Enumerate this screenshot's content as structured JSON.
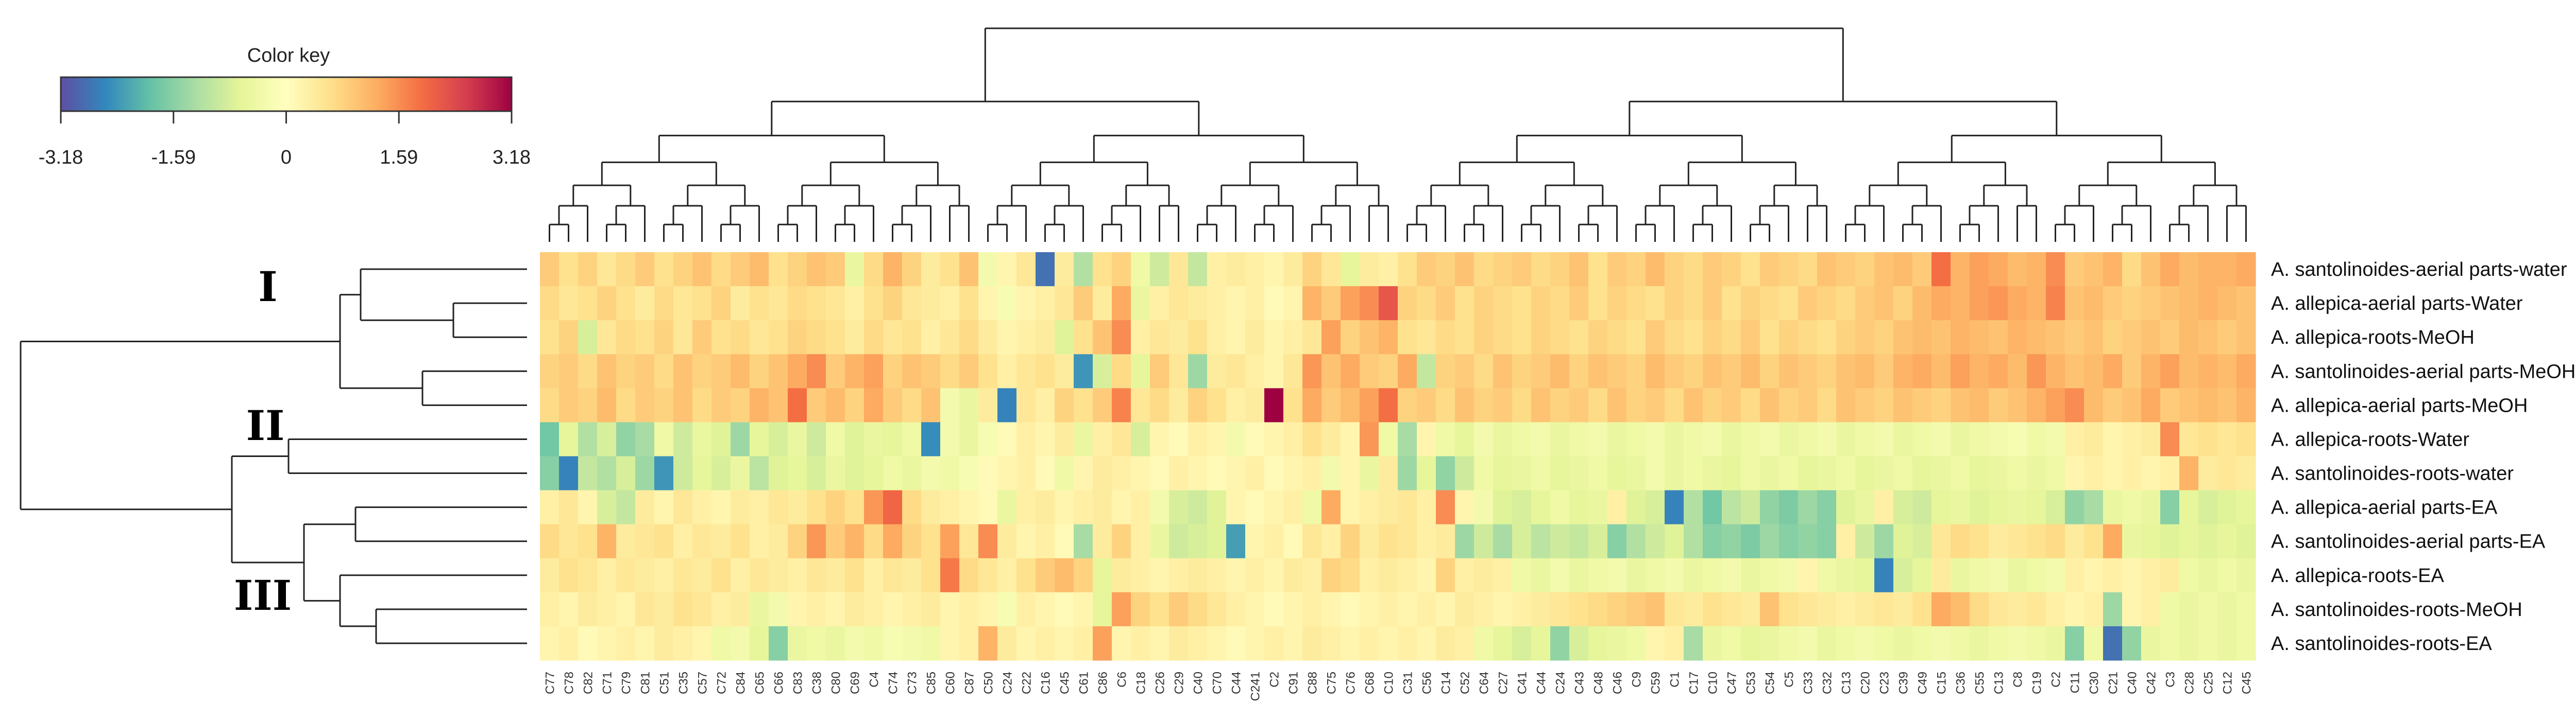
{
  "chart_data": {
    "type": "heatmap",
    "title": "",
    "color_key": {
      "title": "Color key",
      "min": -3.18,
      "max": 3.18,
      "tick_labels": [
        "-3.18",
        "-1.59",
        "0",
        "1.59",
        "3.18"
      ],
      "palette": [
        "#5e4fa2",
        "#3288bd",
        "#66c2a5",
        "#abdda4",
        "#e6f598",
        "#ffffbf",
        "#fee08b",
        "#fdae61",
        "#f46d43",
        "#d53e4f",
        "#9e0142"
      ]
    },
    "rows": [
      "A. santolinoides-aerial parts-water",
      "A. allepica-aerial parts-Water",
      "A. allepica-roots-MeOH",
      "A. santolinoides-aerial parts-MeOH",
      "A. allepica-aerial parts-MeOH",
      "A. allepica-roots-Water",
      "A. santolinoides-roots-water",
      "A. allepica-aerial parts-EA",
      "A. santolinoides-aerial parts-EA",
      "A. allepica-roots-EA",
      "A. santolinoides-roots-MeOH",
      "A. santolinoides-roots-EA"
    ],
    "row_groups": [
      {
        "label": "I",
        "rows": [
          0,
          1,
          2,
          3,
          4
        ]
      },
      {
        "label": "II",
        "rows": [
          5,
          6
        ]
      },
      {
        "label": "III",
        "rows": [
          7,
          8,
          9,
          10,
          11
        ]
      }
    ],
    "columns": [
      "C77",
      "C78",
      "C82",
      "C71",
      "C79",
      "C81",
      "C51",
      "C35",
      "C57",
      "C72",
      "C84",
      "C65",
      "C66",
      "C83",
      "C38",
      "C80",
      "C69",
      "C4",
      "C74",
      "C73",
      "C85",
      "C60",
      "C87",
      "C50",
      "C24",
      "C22",
      "C16",
      "C45",
      "C61",
      "C86",
      "C6",
      "C18",
      "C26",
      "C29",
      "C40",
      "C70",
      "C44",
      "C241",
      "C2",
      "C91",
      "C88",
      "C75",
      "C76",
      "C68",
      "C10",
      "C31",
      "C56",
      "C14",
      "C52",
      "C64",
      "C27",
      "C41",
      "C44",
      "C24",
      "C43",
      "C48",
      "C46",
      "C9",
      "C59",
      "C1",
      "C17",
      "C10",
      "C47",
      "C53",
      "C54",
      "C5",
      "C33",
      "C32",
      "C13",
      "C20",
      "C23",
      "C39",
      "C49",
      "C15",
      "C36",
      "C55",
      "C13",
      "C8",
      "C19",
      "C2",
      "C11",
      "C30",
      "C21",
      "C40",
      "C42",
      "C3",
      "C28",
      "C25",
      "C12",
      "C45"
    ],
    "values": [
      [
        0.9,
        0.6,
        0.8,
        0.5,
        0.7,
        0.9,
        0.6,
        0.8,
        1.0,
        0.7,
        0.9,
        1.1,
        0.6,
        0.8,
        1.0,
        0.9,
        -0.5,
        0.7,
        1.2,
        0.8,
        0.4,
        0.6,
        1.0,
        -0.3,
        0.2,
        0.5,
        -2.8,
        0.4,
        -1.2,
        0.6,
        0.8,
        -0.4,
        -0.9,
        0.5,
        -1.0,
        0.3,
        0.4,
        0.3,
        0.2,
        0.4,
        0.8,
        0.5,
        -0.6,
        0.4,
        0.3,
        0.6,
        0.9,
        0.8,
        1.0,
        0.7,
        0.8,
        0.9,
        0.7,
        0.8,
        1.0,
        0.6,
        0.9,
        0.8,
        1.1,
        0.8,
        0.7,
        0.9,
        0.8,
        0.6,
        0.9,
        0.8,
        0.7,
        1.0,
        0.9,
        0.8,
        1.0,
        1.1,
        0.9,
        1.9,
        1.2,
        1.4,
        1.3,
        1.1,
        1.2,
        1.6,
        0.9,
        1.0,
        1.2,
        0.7,
        1.0,
        1.3,
        1.1,
        1.2,
        1.2,
        1.3
      ],
      [
        0.7,
        0.5,
        0.6,
        0.8,
        0.6,
        0.4,
        0.7,
        0.5,
        0.6,
        0.8,
        0.4,
        0.6,
        0.5,
        0.7,
        0.6,
        0.5,
        0.3,
        0.6,
        0.8,
        0.5,
        0.4,
        0.3,
        0.6,
        0.2,
        -0.2,
        0.2,
        0.3,
        0.5,
        0.9,
        0.4,
        1.3,
        -0.5,
        0.3,
        0.5,
        0.4,
        0.3,
        0.2,
        0.3,
        0.1,
        0.2,
        1.2,
        0.9,
        1.4,
        1.6,
        2.2,
        0.8,
        0.7,
        0.9,
        0.6,
        0.8,
        0.7,
        0.6,
        0.8,
        0.7,
        0.9,
        0.6,
        0.8,
        0.7,
        0.6,
        0.8,
        0.7,
        0.9,
        0.6,
        0.8,
        0.7,
        0.6,
        0.9,
        0.8,
        0.7,
        0.9,
        1.0,
        0.8,
        1.1,
        1.3,
        1.2,
        1.4,
        1.5,
        1.3,
        1.2,
        1.7,
        1.0,
        1.1,
        0.9,
        0.8,
        0.9,
        1.0,
        1.1,
        1.2,
        1.1,
        1.0
      ],
      [
        0.6,
        0.8,
        -0.8,
        0.5,
        0.7,
        0.6,
        0.8,
        0.5,
        0.9,
        0.6,
        0.7,
        0.5,
        0.6,
        0.8,
        0.7,
        0.6,
        0.4,
        0.7,
        0.5,
        0.6,
        0.3,
        0.5,
        0.7,
        0.4,
        0.2,
        0.3,
        0.4,
        -0.7,
        0.6,
        1.0,
        1.6,
        0.3,
        0.5,
        0.4,
        0.6,
        0.3,
        0.2,
        0.4,
        0.2,
        0.3,
        0.5,
        1.4,
        0.8,
        1.0,
        1.2,
        0.6,
        0.5,
        0.7,
        0.6,
        0.8,
        0.7,
        0.6,
        0.8,
        0.7,
        0.6,
        0.8,
        0.7,
        0.6,
        0.9,
        0.7,
        0.6,
        0.8,
        0.7,
        0.9,
        0.6,
        0.8,
        0.7,
        0.6,
        0.8,
        0.9,
        0.8,
        1.0,
        1.1,
        1.0,
        1.2,
        1.1,
        1.0,
        1.2,
        1.1,
        1.0,
        0.9,
        1.0,
        0.8,
        0.9,
        1.0,
        0.9,
        1.1,
        1.0,
        0.9,
        1.0
      ],
      [
        0.8,
        0.9,
        0.7,
        1.0,
        0.8,
        0.9,
        0.7,
        1.0,
        0.8,
        0.9,
        1.1,
        0.8,
        1.0,
        1.3,
        1.6,
        0.9,
        1.2,
        1.4,
        0.8,
        1.0,
        0.9,
        0.7,
        0.9,
        0.6,
        0.3,
        0.5,
        0.6,
        0.4,
        -2.4,
        -0.8,
        0.7,
        -0.6,
        0.9,
        0.5,
        -1.4,
        0.4,
        0.5,
        0.3,
        0.2,
        0.5,
        1.5,
        1.0,
        1.3,
        0.9,
        0.8,
        1.3,
        -1.0,
        0.8,
        0.9,
        0.7,
        1.0,
        0.8,
        0.9,
        1.1,
        0.8,
        1.0,
        0.9,
        0.8,
        1.1,
        0.9,
        0.8,
        1.0,
        0.9,
        1.1,
        0.8,
        1.0,
        0.9,
        0.8,
        1.0,
        1.1,
        0.9,
        1.2,
        1.3,
        1.1,
        1.4,
        1.2,
        1.3,
        1.1,
        1.5,
        1.2,
        1.0,
        1.1,
        1.3,
        0.9,
        1.2,
        1.4,
        1.1,
        1.2,
        1.1,
        1.3
      ],
      [
        0.7,
        0.9,
        0.8,
        1.1,
        0.7,
        0.9,
        0.8,
        1.0,
        0.7,
        0.9,
        0.8,
        1.2,
        1.0,
        1.9,
        0.9,
        1.1,
        0.8,
        1.3,
        0.9,
        0.7,
        1.0,
        -0.3,
        -0.5,
        0.4,
        -2.6,
        0.5,
        0.3,
        0.8,
        0.6,
        0.9,
        1.7,
        0.5,
        0.7,
        0.4,
        0.8,
        0.6,
        0.3,
        0.4,
        3.2,
        0.6,
        1.3,
        0.9,
        1.1,
        1.4,
        1.9,
        0.8,
        0.9,
        0.7,
        1.0,
        0.8,
        0.9,
        0.7,
        1.0,
        0.8,
        0.9,
        0.7,
        1.0,
        0.8,
        0.9,
        0.7,
        1.0,
        0.8,
        0.9,
        0.7,
        1.0,
        0.8,
        0.9,
        0.7,
        1.0,
        0.9,
        0.8,
        1.0,
        0.9,
        0.8,
        1.0,
        1.1,
        0.9,
        1.0,
        1.2,
        1.4,
        1.6,
        1.1,
        0.9,
        1.0,
        1.3,
        0.9,
        1.0,
        1.1,
        1.0,
        1.2
      ],
      [
        -1.8,
        -0.6,
        -1.2,
        -0.8,
        -1.5,
        -1.3,
        -0.4,
        -0.9,
        -0.5,
        -0.7,
        -1.4,
        -0.6,
        -0.8,
        -0.5,
        -0.9,
        -0.4,
        -0.7,
        -0.5,
        -0.6,
        -0.4,
        -2.5,
        -0.3,
        -0.5,
        -0.2,
        0.1,
        0.3,
        0.2,
        0.4,
        -0.5,
        0.3,
        0.5,
        -0.8,
        0.2,
        0.1,
        0.3,
        0.2,
        -0.3,
        0.1,
        0.2,
        0.3,
        0.6,
        0.4,
        0.2,
        1.5,
        -0.4,
        -1.3,
        0.2,
        -0.4,
        -0.6,
        -0.3,
        -0.5,
        -0.4,
        -0.3,
        -0.5,
        -0.4,
        -0.3,
        -0.5,
        -0.4,
        -0.3,
        -0.5,
        -0.4,
        -0.3,
        -0.5,
        -0.4,
        -0.3,
        -0.5,
        -0.4,
        -0.3,
        -0.5,
        -0.4,
        -0.3,
        -0.5,
        -0.4,
        -0.3,
        -0.5,
        -0.4,
        -0.3,
        -0.2,
        -0.4,
        -0.3,
        0.3,
        0.4,
        0.2,
        0.3,
        0.4,
        1.6,
        0.5,
        0.6,
        0.5,
        0.6
      ],
      [
        -1.6,
        -2.6,
        -1.0,
        -1.2,
        -0.8,
        -1.4,
        -2.4,
        -0.9,
        -0.6,
        -0.8,
        -0.5,
        -1.1,
        -0.7,
        -0.6,
        -0.8,
        -0.5,
        -0.7,
        -0.6,
        -0.4,
        -0.5,
        -0.3,
        -0.4,
        -0.2,
        0.1,
        0.2,
        0.3,
        0.1,
        -0.4,
        0.2,
        0.4,
        0.3,
        0.2,
        0.1,
        0.3,
        0.2,
        0.1,
        0.2,
        0.3,
        0.1,
        0.2,
        0.3,
        -0.3,
        0.2,
        -0.5,
        0.4,
        -1.4,
        -0.6,
        -1.5,
        -0.9,
        -0.4,
        -0.6,
        -0.5,
        -0.4,
        -0.6,
        -0.5,
        -0.4,
        -0.6,
        -0.5,
        -0.3,
        -0.5,
        -0.4,
        -0.5,
        -0.6,
        -0.4,
        -0.5,
        -0.4,
        -0.6,
        -0.5,
        -0.4,
        -0.6,
        -0.5,
        -0.4,
        -0.6,
        -0.5,
        -0.4,
        -0.6,
        -0.5,
        -0.4,
        -0.5,
        -0.4,
        0.2,
        0.3,
        0.2,
        0.3,
        0.2,
        0.3,
        1.2,
        0.4,
        0.5,
        0.4
      ],
      [
        0.3,
        0.5,
        0.2,
        -0.8,
        -1.0,
        0.4,
        0.2,
        0.5,
        0.3,
        0.2,
        0.4,
        0.3,
        0.5,
        0.4,
        0.6,
        0.8,
        0.6,
        1.5,
        2.0,
        0.7,
        0.4,
        0.3,
        0.2,
        0.1,
        -0.5,
        0.3,
        0.4,
        0.2,
        0.3,
        0.4,
        0.2,
        0.3,
        -0.3,
        -0.8,
        -0.9,
        -0.7,
        0.2,
        0.1,
        0.2,
        0.3,
        -0.4,
        1.3,
        0.2,
        0.3,
        0.4,
        0.5,
        0.3,
        1.6,
        0.2,
        -0.3,
        -0.7,
        -0.8,
        -0.6,
        -0.4,
        -0.6,
        -0.5,
        0.3,
        -0.7,
        -0.8,
        -2.6,
        -1.2,
        -1.8,
        -1.1,
        -0.9,
        -1.5,
        -1.7,
        -1.4,
        -1.6,
        -0.7,
        -0.5,
        0.3,
        -0.8,
        -0.9,
        -0.6,
        -0.5,
        -0.7,
        -0.6,
        -0.5,
        -0.6,
        -0.8,
        -1.5,
        -1.3,
        -0.5,
        -0.4,
        -0.5,
        -1.6,
        -0.6,
        -0.8,
        -0.7,
        -0.6
      ],
      [
        0.7,
        0.5,
        0.6,
        1.2,
        0.4,
        0.5,
        0.6,
        0.3,
        0.5,
        0.4,
        0.6,
        0.3,
        0.4,
        0.8,
        1.5,
        0.9,
        1.2,
        0.7,
        1.3,
        0.8,
        0.6,
        1.4,
        0.5,
        1.6,
        0.4,
        0.2,
        0.3,
        0.1,
        -1.3,
        0.4,
        0.8,
        0.3,
        -0.5,
        -0.9,
        -0.8,
        -0.7,
        -2.3,
        0.2,
        0.3,
        0.1,
        0.5,
        0.3,
        0.8,
        0.4,
        0.6,
        0.5,
        0.3,
        0.4,
        -1.4,
        -0.9,
        -1.3,
        -0.8,
        -1.1,
        -0.9,
        -1.0,
        -0.8,
        -1.6,
        -1.2,
        -0.9,
        -0.7,
        -1.2,
        -1.6,
        -1.5,
        -1.7,
        -1.4,
        -1.6,
        -1.5,
        -1.6,
        0.3,
        -0.9,
        -1.4,
        -0.7,
        -0.8,
        0.5,
        0.7,
        0.6,
        0.4,
        0.5,
        0.6,
        0.7,
        0.4,
        0.6,
        1.3,
        -0.5,
        -0.6,
        -0.7,
        -0.6,
        -0.7,
        -0.6,
        -0.7
      ],
      [
        0.4,
        0.6,
        0.5,
        0.3,
        0.5,
        0.4,
        0.3,
        0.5,
        0.4,
        0.6,
        0.3,
        0.5,
        0.4,
        0.3,
        0.5,
        0.4,
        0.6,
        0.3,
        0.5,
        0.4,
        0.6,
        1.8,
        0.7,
        0.5,
        0.3,
        0.6,
        0.9,
        1.1,
        0.8,
        -0.6,
        0.4,
        0.3,
        0.2,
        0.3,
        0.4,
        0.3,
        0.2,
        0.3,
        0.2,
        0.4,
        0.3,
        0.8,
        0.7,
        0.3,
        0.4,
        0.3,
        0.2,
        0.8,
        0.3,
        0.4,
        0.3,
        -0.4,
        -0.5,
        -0.3,
        -0.5,
        -0.4,
        -0.3,
        -0.5,
        -0.4,
        -0.3,
        -0.5,
        -0.4,
        -0.3,
        -0.5,
        -0.4,
        -0.3,
        0.2,
        -0.4,
        -0.5,
        -0.6,
        -2.6,
        -0.8,
        -0.6,
        0.4,
        -0.5,
        -0.4,
        -0.3,
        -0.5,
        -0.4,
        -0.3,
        0.3,
        0.2,
        0.3,
        0.2,
        0.3,
        0.4,
        -0.4,
        -0.5,
        -0.4,
        -0.5
      ],
      [
        0.3,
        0.2,
        0.4,
        0.3,
        0.2,
        0.5,
        0.4,
        0.6,
        0.5,
        0.3,
        0.4,
        -0.5,
        -0.3,
        0.2,
        0.3,
        0.2,
        0.4,
        0.3,
        0.2,
        0.3,
        0.4,
        0.2,
        0.3,
        0.2,
        -0.2,
        0.3,
        0.2,
        0.1,
        0.2,
        -0.6,
        1.4,
        0.8,
        0.6,
        0.9,
        0.7,
        0.5,
        0.3,
        0.2,
        0.1,
        0.2,
        0.3,
        0.2,
        0.1,
        0.2,
        0.3,
        0.2,
        0.3,
        0.2,
        0.4,
        0.3,
        0.2,
        0.3,
        0.4,
        0.5,
        0.6,
        0.7,
        0.8,
        0.9,
        1.0,
        0.5,
        0.4,
        0.6,
        0.5,
        0.4,
        1.0,
        0.6,
        0.5,
        0.4,
        0.3,
        0.4,
        0.5,
        0.4,
        0.6,
        1.3,
        1.1,
        0.7,
        0.5,
        0.4,
        0.5,
        0.3,
        0.2,
        0.3,
        -1.4,
        0.2,
        0.3,
        -0.4,
        -0.5,
        -0.4,
        -0.5,
        -0.4
      ],
      [
        0.2,
        0.3,
        0.1,
        0.2,
        0.3,
        0.2,
        0.4,
        0.3,
        0.2,
        -0.4,
        -0.3,
        -0.6,
        -1.6,
        -0.5,
        -0.4,
        -0.5,
        -0.3,
        -0.4,
        -0.2,
        -0.3,
        -0.4,
        0.2,
        0.3,
        1.2,
        0.4,
        0.2,
        0.3,
        0.2,
        0.3,
        1.4,
        0.2,
        0.3,
        0.2,
        0.4,
        0.3,
        0.2,
        0.1,
        0.2,
        0.3,
        0.2,
        0.4,
        0.3,
        0.2,
        0.3,
        0.2,
        0.3,
        0.2,
        0.4,
        0.3,
        -0.4,
        -0.6,
        -0.8,
        -0.6,
        -1.5,
        -0.8,
        -0.6,
        -0.5,
        -0.4,
        0.2,
        0.3,
        -1.3,
        -0.5,
        -0.4,
        -0.6,
        -0.5,
        -0.4,
        -0.3,
        -0.5,
        -0.4,
        -0.3,
        -0.4,
        -0.5,
        -0.4,
        -0.3,
        -0.4,
        -0.5,
        -0.4,
        -0.3,
        -0.4,
        -0.5,
        -1.6,
        -0.4,
        -2.8,
        -1.5,
        -0.5,
        -0.4,
        -0.5,
        -0.4,
        -0.5,
        -0.4
      ]
    ]
  }
}
